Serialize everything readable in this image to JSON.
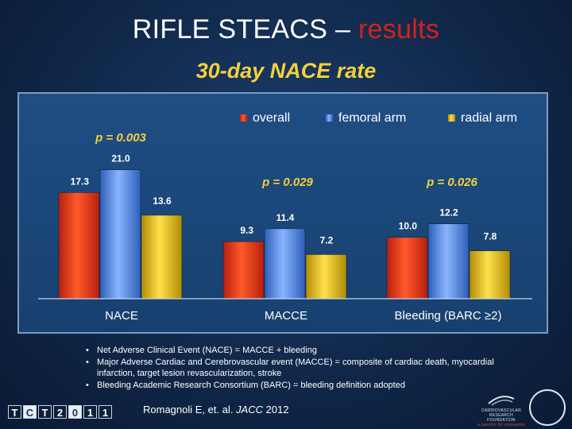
{
  "slide": {
    "title_main": "RIFLE STEACS –",
    "title_accent": "results",
    "subtitle": "30-day NACE rate",
    "notes": [
      "Net Adverse Clinical Event (NACE) = MACCE + bleeding",
      "Major Adverse Cardiac and Cerebrovascular event (MACCE) = composite of cardiac death, myocardial infarction, target lesion revascularization, stroke",
      "Bleeding Academic Research Consortium (BARC) = bleeding definition adopted"
    ],
    "citation_prefix": "Romagnoli E, et. al. ",
    "citation_journal": "JACC",
    "citation_year": " 2012",
    "logo_tct_chars": [
      "T",
      "C",
      "T",
      "2",
      "0",
      "1",
      "1"
    ],
    "logo_crf_text": "CARDIOVASCULAR RESEARCH FOUNDATION",
    "logo_crf_tagline": "a passion for innovation"
  },
  "colors": {
    "overall": "#e8341c",
    "femoral": "#4f86e0",
    "radial": "#e8c21a",
    "p_value": "#f4d13a",
    "title_accent": "#d6201b"
  },
  "chart_data": {
    "type": "bar",
    "categories": [
      "NACE",
      "MACCE",
      "Bleeding (BARC ≥2)"
    ],
    "series": [
      {
        "name": "overall",
        "values": [
          17.3,
          9.3,
          10.0
        ],
        "labels": [
          "17.3",
          "9.3",
          "10.0"
        ]
      },
      {
        "name": "femoral arm",
        "values": [
          21.0,
          11.4,
          12.2
        ],
        "labels": [
          "21.0",
          "11.4",
          "12.2"
        ]
      },
      {
        "name": "radial arm",
        "values": [
          13.6,
          7.2,
          7.8
        ],
        "labels": [
          "13.6",
          "7.2",
          "7.8"
        ]
      }
    ],
    "p_values": [
      "p = 0.003",
      "p = 0.029",
      "p = 0.026"
    ],
    "ylim": [
      0,
      22
    ],
    "legend_position": "top-right",
    "grid": false
  }
}
